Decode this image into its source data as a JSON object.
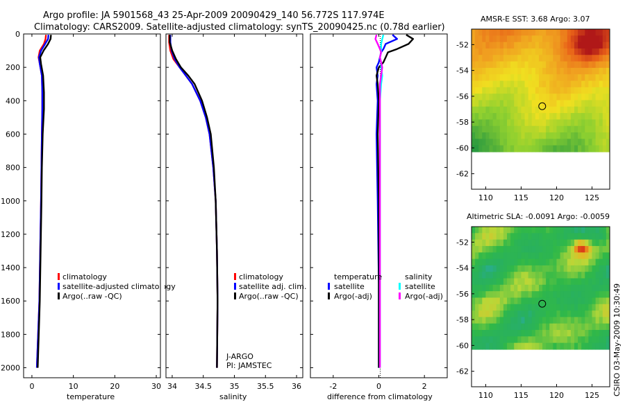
{
  "header": {
    "line1": "Argo profile: JA 5901568_43 25-Apr-2009 20090429_140 56.772S 117.974E",
    "line2": "Climatology: CARS2009. Satellite-adjusted climatology: synTS_20090425.nc (0.78d earlier)"
  },
  "side_label": "CSIRO 03-May-2009 10:30:49",
  "chart_data": [
    {
      "id": "temperature",
      "type": "line",
      "xlabel": "temperature",
      "ylabel": "",
      "xlim": [
        -2,
        31
      ],
      "ylim": [
        2060,
        0
      ],
      "xticks": [
        0,
        10,
        20,
        30
      ],
      "xtick_labels": [
        "0",
        "10",
        "20",
        "30"
      ],
      "yticks": [
        0,
        200,
        400,
        600,
        800,
        1000,
        1200,
        1400,
        1600,
        1800,
        2000
      ],
      "ytick_labels": [
        "0",
        "200",
        "400",
        "600",
        "800",
        "1000",
        "1200",
        "1400",
        "1600",
        "1800",
        "2000"
      ],
      "legend": [
        {
          "label": "climatology",
          "color": "#ff0000"
        },
        {
          "label": "satellite-adjusted climatology",
          "color": "#0000ff"
        },
        {
          "label": "Argo(..raw -QC)",
          "color": "#000000"
        }
      ],
      "depth": [
        5,
        30,
        60,
        100,
        140,
        180,
        250,
        350,
        450,
        600,
        800,
        1000,
        1300,
        1600,
        2000
      ],
      "series": [
        {
          "name": "climatology",
          "color": "#ff0000",
          "values": [
            3.4,
            3.3,
            2.9,
            1.9,
            1.6,
            1.9,
            2.4,
            2.5,
            2.5,
            2.4,
            2.3,
            2.2,
            2.0,
            1.8,
            1.2
          ]
        },
        {
          "name": "satellite-adjusted climatology",
          "color": "#0000ff",
          "values": [
            4.0,
            3.9,
            3.2,
            2.2,
            1.7,
            1.9,
            2.4,
            2.5,
            2.5,
            2.4,
            2.3,
            2.2,
            2.0,
            1.8,
            1.2
          ]
        },
        {
          "name": "Argo(..raw -QC)",
          "color": "#000000",
          "values": [
            4.6,
            4.5,
            3.9,
            2.8,
            2.0,
            2.2,
            2.7,
            2.9,
            2.9,
            2.6,
            2.4,
            2.3,
            2.1,
            1.9,
            1.4
          ]
        }
      ]
    },
    {
      "id": "salinity",
      "type": "line",
      "xlabel": "salinity",
      "xlim": [
        33.9,
        36.1
      ],
      "ylim": [
        2060,
        0
      ],
      "xticks": [
        34,
        34.5,
        35,
        35.5,
        36
      ],
      "xtick_labels": [
        "34",
        "34.5",
        "35",
        "35.5",
        "36"
      ],
      "legend": [
        {
          "label": "climatology",
          "color": "#ff0000"
        },
        {
          "label": "satellite adj. clim.",
          "color": "#0000ff"
        },
        {
          "label": "Argo(..raw -QC)",
          "color": "#000000"
        }
      ],
      "annotation": [
        "J-ARGO",
        "PI: JAMSTEC"
      ],
      "depth": [
        5,
        50,
        100,
        150,
        200,
        250,
        300,
        400,
        500,
        600,
        800,
        1000,
        1300,
        1600,
        2000
      ],
      "series": [
        {
          "name": "climatology",
          "color": "#ff0000",
          "values": [
            33.95,
            33.95,
            33.97,
            34.02,
            34.12,
            34.22,
            34.32,
            34.45,
            34.54,
            34.6,
            34.66,
            34.7,
            34.72,
            34.73,
            34.72
          ]
        },
        {
          "name": "satellite adj. clim.",
          "color": "#0000ff",
          "values": [
            33.97,
            33.97,
            33.99,
            34.04,
            34.12,
            34.22,
            34.32,
            34.45,
            34.54,
            34.6,
            34.66,
            34.7,
            34.72,
            34.73,
            34.72
          ]
        },
        {
          "name": "Argo(..raw -QC)",
          "color": "#000000",
          "values": [
            33.96,
            33.96,
            34.0,
            34.06,
            34.14,
            34.26,
            34.36,
            34.48,
            34.56,
            34.62,
            34.67,
            34.7,
            34.72,
            34.73,
            34.72
          ]
        }
      ]
    },
    {
      "id": "difference",
      "type": "line",
      "xlabel": "difference from climatology",
      "xlim": [
        -3,
        3
      ],
      "ylim": [
        2060,
        0
      ],
      "xticks": [
        -2,
        0,
        2
      ],
      "xtick_labels": [
        "-2",
        "0",
        "2"
      ],
      "legend_left": {
        "title": "temperature",
        "items": [
          {
            "label": "satellite",
            "color": "#0000ff"
          },
          {
            "label": "Argo(-adj)",
            "color": "#000000"
          }
        ]
      },
      "legend_right": {
        "title": "salinity",
        "items": [
          {
            "label": "satellite",
            "color": "#00ffff"
          },
          {
            "label": "Argo(-adj)",
            "color": "#ff00ff"
          }
        ]
      },
      "depth": [
        5,
        30,
        60,
        90,
        110,
        140,
        170,
        200,
        250,
        300,
        400,
        600,
        1000,
        1500,
        2000
      ],
      "series": [
        {
          "name": "temperature satellite",
          "color": "#0000ff",
          "values": [
            0.6,
            0.8,
            0.3,
            0.2,
            0.1,
            0.05,
            0.0,
            -0.1,
            -0.05,
            -0.1,
            -0.05,
            -0.1,
            -0.05,
            0.0,
            0.0
          ]
        },
        {
          "name": "temperature Argo(-adj)",
          "color": "#000000",
          "values": [
            1.2,
            1.5,
            1.3,
            0.8,
            0.4,
            0.3,
            0.2,
            0.0,
            -0.1,
            -0.05,
            0.0,
            -0.05,
            0.0,
            0.0,
            0.0
          ]
        },
        {
          "name": "salinity satellite",
          "color": "#00ffff",
          "values": [
            0.2,
            0.15,
            0.1,
            0.1,
            0.1,
            0.05,
            0.1,
            0.1,
            0.15,
            0.1,
            0.05,
            0.05,
            0.05,
            0.05,
            0.05
          ]
        },
        {
          "name": "salinity Argo(-adj)",
          "color": "#ff00ff",
          "values": [
            -0.1,
            -0.15,
            -0.05,
            0.05,
            0.1,
            0.05,
            0.1,
            0.15,
            0.1,
            0.05,
            0.05,
            0.05,
            0.05,
            0.05,
            0.05
          ]
        }
      ]
    },
    {
      "id": "sst-map",
      "type": "heatmap",
      "title": "AMSR-E SST: 3.68 Argo: 3.07",
      "xlim": [
        108,
        127.5
      ],
      "ylim": [
        -63.2,
        -50.8
      ],
      "xticks": [
        110,
        115,
        120,
        125
      ],
      "xtick_labels": [
        "110",
        "115",
        "120",
        "125"
      ],
      "yticks": [
        -52,
        -54,
        -56,
        -58,
        -60,
        -62
      ],
      "ytick_labels": [
        "-52",
        "-54",
        "-56",
        "-58",
        "-60",
        "-62"
      ],
      "data_south_limit": -60,
      "marker": {
        "lon": 117.974,
        "lat": -56.772
      },
      "palette": [
        "#2a9a40",
        "#8ed030",
        "#f0e020",
        "#f0a020",
        "#e86018",
        "#b01818"
      ]
    },
    {
      "id": "sla-map",
      "type": "heatmap",
      "title": "Altimetric SLA: -0.0091 Argo: -0.0059",
      "xlim": [
        108,
        127.5
      ],
      "ylim": [
        -63.2,
        -50.8
      ],
      "xticks": [
        110,
        115,
        120,
        125
      ],
      "xtick_labels": [
        "110",
        "115",
        "120",
        "125"
      ],
      "yticks": [
        -52,
        -54,
        -56,
        -58,
        -60,
        -62
      ],
      "ytick_labels": [
        "-52",
        "-54",
        "-56",
        "-58",
        "-60",
        "-62"
      ],
      "data_south_limit": -60,
      "marker": {
        "lon": 117.974,
        "lat": -56.772
      },
      "palette": [
        "#2aa8c8",
        "#28b060",
        "#30b848",
        "#b8d838",
        "#f0b020",
        "#d83018"
      ]
    }
  ]
}
